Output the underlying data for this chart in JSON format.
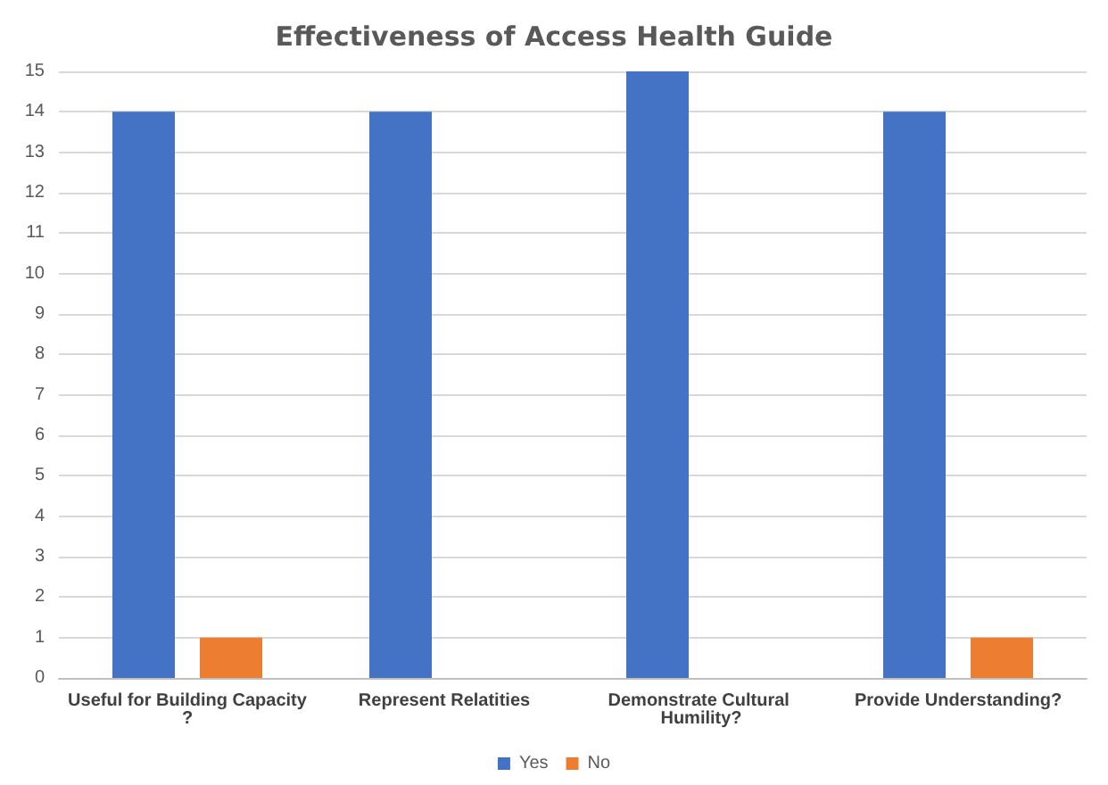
{
  "chart_data": {
    "type": "bar",
    "title": "Effectiveness of Access Health Guide",
    "categories": [
      "Useful for Building Capacity?",
      "Represent Relatities",
      "Demonstrate Cultural Humility?",
      "Provide Understanding?"
    ],
    "series": [
      {
        "name": "Yes",
        "color": "#4472c4",
        "values": [
          14,
          14,
          15,
          14
        ]
      },
      {
        "name": "No",
        "color": "#ed7d31",
        "values": [
          1,
          0,
          0,
          1
        ]
      }
    ],
    "ylim": [
      0,
      15
    ],
    "yticks": [
      0,
      1,
      2,
      3,
      4,
      5,
      6,
      7,
      8,
      9,
      10,
      11,
      12,
      13,
      14,
      15
    ],
    "grid": "y",
    "legend": "bottom"
  }
}
